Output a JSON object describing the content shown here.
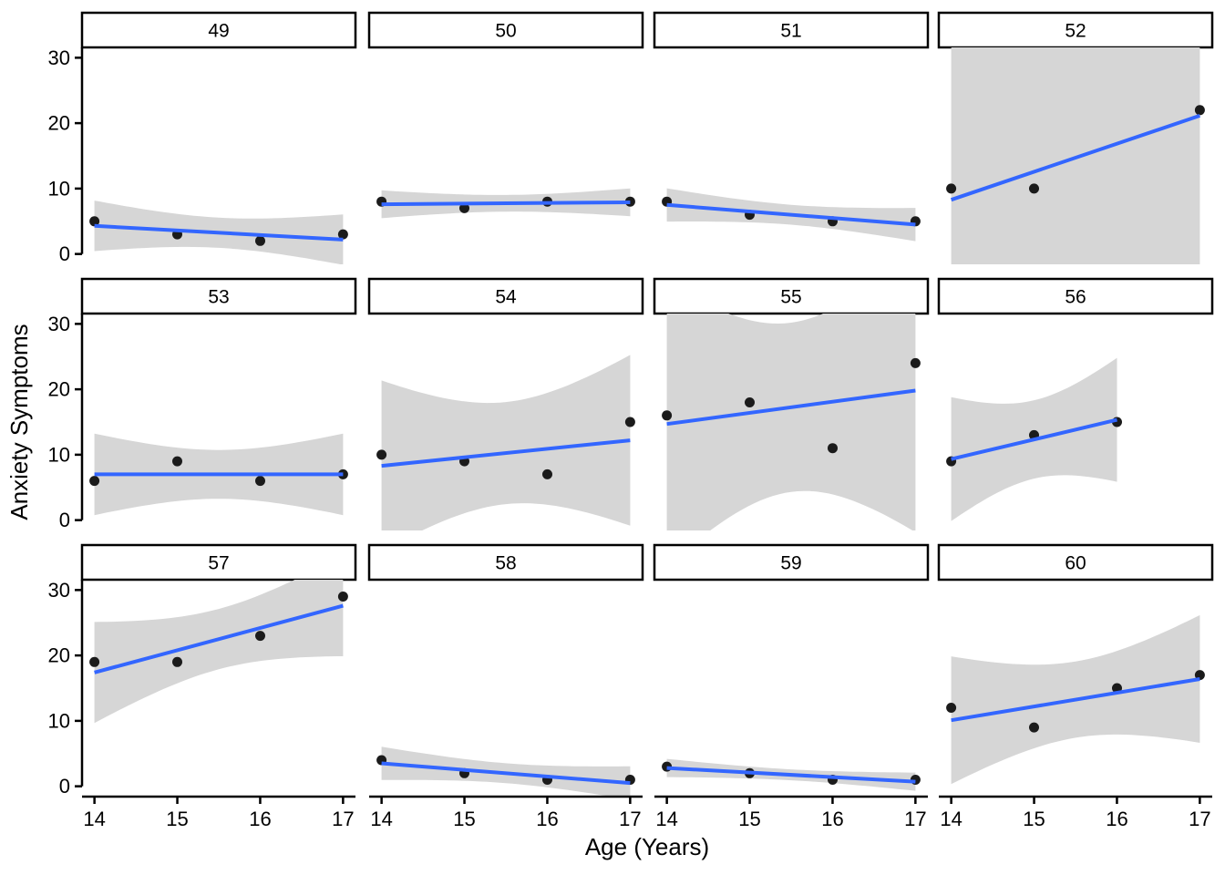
{
  "figure": {
    "background": "#FFFFFF"
  },
  "colors": {
    "regression_line": "#3366FF",
    "confidence_band": "#D6D6D6",
    "data_point": "#1B1B1B",
    "axis": "#000000",
    "strip_border": "#000000",
    "strip_background": "#FFFFFF"
  },
  "chart_data": {
    "type": "scatter",
    "subtype": "faceted scatter with linear regression and 95% confidence band",
    "xlabel": "Age (Years)",
    "ylabel": "Anxiety Symptoms",
    "x_ticks": [
      14,
      15,
      16,
      17
    ],
    "y_ticks": [
      0,
      10,
      20,
      30
    ],
    "x_range": [
      14,
      17
    ],
    "y_range": [
      0,
      30
    ],
    "grid": "off",
    "legend": "none",
    "facet_layout": {
      "rows": 3,
      "cols": 4
    },
    "facets": [
      {
        "label": "49",
        "points": [
          [
            14,
            5
          ],
          [
            15,
            3
          ],
          [
            16,
            2
          ],
          [
            17,
            3
          ]
        ]
      },
      {
        "label": "50",
        "points": [
          [
            14,
            8
          ],
          [
            15,
            7
          ],
          [
            16,
            8
          ],
          [
            17,
            8
          ]
        ]
      },
      {
        "label": "51",
        "points": [
          [
            14,
            8
          ],
          [
            15,
            6
          ],
          [
            16,
            5
          ],
          [
            17,
            5
          ]
        ]
      },
      {
        "label": "52",
        "points": [
          [
            14,
            10
          ],
          [
            15,
            10
          ],
          [
            17,
            22
          ]
        ]
      },
      {
        "label": "53",
        "points": [
          [
            14,
            6
          ],
          [
            15,
            9
          ],
          [
            16,
            6
          ],
          [
            17,
            7
          ]
        ]
      },
      {
        "label": "54",
        "points": [
          [
            14,
            10
          ],
          [
            15,
            9
          ],
          [
            16,
            7
          ],
          [
            17,
            15
          ]
        ]
      },
      {
        "label": "55",
        "points": [
          [
            14,
            16
          ],
          [
            15,
            18
          ],
          [
            16,
            11
          ],
          [
            17,
            24
          ]
        ]
      },
      {
        "label": "56",
        "points": [
          [
            14,
            9
          ],
          [
            15,
            13
          ],
          [
            16,
            15
          ]
        ]
      },
      {
        "label": "57",
        "points": [
          [
            14,
            19
          ],
          [
            15,
            19
          ],
          [
            16,
            23
          ],
          [
            17,
            29
          ]
        ]
      },
      {
        "label": "58",
        "points": [
          [
            14,
            4
          ],
          [
            15,
            2
          ],
          [
            16,
            1
          ],
          [
            17,
            1
          ]
        ]
      },
      {
        "label": "59",
        "points": [
          [
            14,
            3
          ],
          [
            15,
            2
          ],
          [
            16,
            1
          ],
          [
            17,
            1
          ]
        ]
      },
      {
        "label": "60",
        "points": [
          [
            14,
            12
          ],
          [
            15,
            9
          ],
          [
            16,
            15
          ],
          [
            17,
            17
          ]
        ]
      }
    ]
  }
}
